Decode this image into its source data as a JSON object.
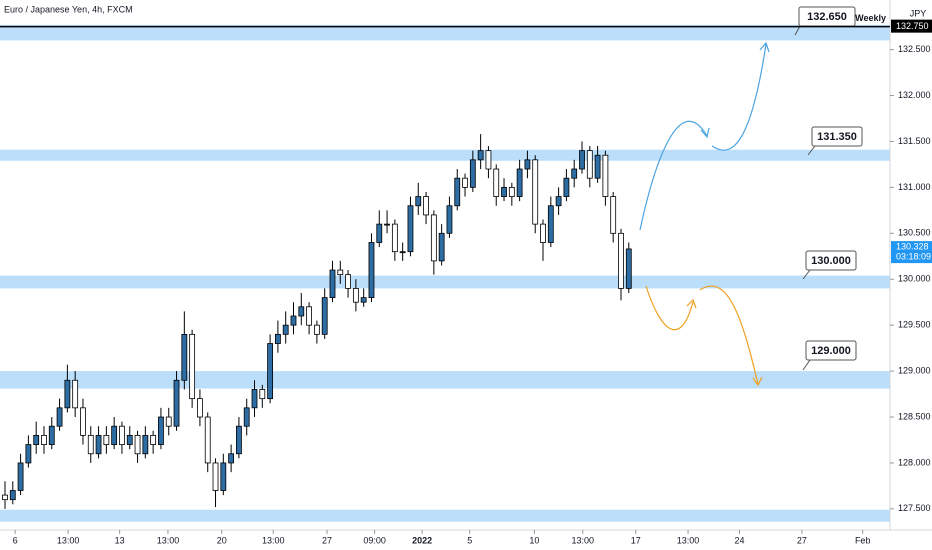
{
  "chart_data": {
    "type": "candlestick",
    "title": "Euro / Japanese Yen, 4h, FXCM",
    "currency": "JPY",
    "up_color": "#2e6da4",
    "down_color": "#ffffff",
    "wick_color": "#000000",
    "zone_color": "#bbdefb",
    "open": [
      127.65,
      127.6,
      127.7,
      128.0,
      128.2,
      128.3,
      128.2,
      128.4,
      128.6,
      128.9,
      128.6,
      128.3,
      128.1,
      128.3,
      128.2,
      128.4,
      128.2,
      128.3,
      128.1,
      128.3,
      128.2,
      128.5,
      128.4,
      128.9,
      129.4,
      128.7,
      128.5,
      128.0,
      127.7,
      128.0,
      128.1,
      128.4,
      128.6,
      128.8,
      128.7,
      129.3,
      129.4,
      129.5,
      129.6,
      129.7,
      129.5,
      129.4,
      129.8,
      130.1,
      130.05,
      129.9,
      129.75,
      129.8,
      130.4,
      130.6,
      130.6,
      130.3,
      130.3,
      130.8,
      130.9,
      130.7,
      130.2,
      130.5,
      130.8,
      131.1,
      131.0,
      131.3,
      131.4,
      131.2,
      130.9,
      131.0,
      130.9,
      131.2,
      131.3,
      130.6,
      130.4,
      130.8,
      130.9,
      131.1,
      131.2,
      131.4,
      131.1,
      131.35,
      130.9,
      130.5,
      129.9
    ],
    "high": [
      127.8,
      127.8,
      128.1,
      128.3,
      128.45,
      128.4,
      128.5,
      128.7,
      129.07,
      129.0,
      128.7,
      128.4,
      128.4,
      128.4,
      128.5,
      128.45,
      128.4,
      128.35,
      128.4,
      128.35,
      128.6,
      128.6,
      129.0,
      129.65,
      129.45,
      128.8,
      128.55,
      128.05,
      128.1,
      128.2,
      128.5,
      128.7,
      128.9,
      128.85,
      129.4,
      129.55,
      129.65,
      129.75,
      129.85,
      129.75,
      129.55,
      129.9,
      130.2,
      130.2,
      130.1,
      130.0,
      129.9,
      130.5,
      130.75,
      130.75,
      130.65,
      130.4,
      130.9,
      131.05,
      130.95,
      130.75,
      130.6,
      130.9,
      131.2,
      131.15,
      131.4,
      131.58,
      131.45,
      131.25,
      131.1,
      131.05,
      131.3,
      131.4,
      131.35,
      130.65,
      130.9,
      131.0,
      131.2,
      131.3,
      131.5,
      131.45,
      131.45,
      131.4,
      130.95,
      130.55,
      130.4
    ],
    "low": [
      127.5,
      127.55,
      127.65,
      127.95,
      128.1,
      128.1,
      128.15,
      128.35,
      128.55,
      128.5,
      128.2,
      128.0,
      128.05,
      128.1,
      128.15,
      128.1,
      128.15,
      128.0,
      128.05,
      128.1,
      128.15,
      128.3,
      128.35,
      128.8,
      128.6,
      128.4,
      127.9,
      127.52,
      127.65,
      127.9,
      128.05,
      128.3,
      128.5,
      128.6,
      128.65,
      129.2,
      129.3,
      129.4,
      129.5,
      129.4,
      129.3,
      129.35,
      129.75,
      129.95,
      129.8,
      129.65,
      129.7,
      129.75,
      130.35,
      130.5,
      130.2,
      130.2,
      130.25,
      130.7,
      130.6,
      130.05,
      130.15,
      130.45,
      130.75,
      130.9,
      130.95,
      131.2,
      131.1,
      130.8,
      130.85,
      130.8,
      130.85,
      131.1,
      130.5,
      130.2,
      130.35,
      130.7,
      130.85,
      131.0,
      131.15,
      131.0,
      131.05,
      130.8,
      130.4,
      129.77,
      129.85
    ],
    "close": [
      127.6,
      127.7,
      128.0,
      128.2,
      128.3,
      128.2,
      128.4,
      128.6,
      128.9,
      128.6,
      128.3,
      128.1,
      128.3,
      128.2,
      128.4,
      128.2,
      128.3,
      128.1,
      128.3,
      128.2,
      128.5,
      128.4,
      128.9,
      129.4,
      128.7,
      128.5,
      128.0,
      127.7,
      128.0,
      128.1,
      128.4,
      128.6,
      128.8,
      128.7,
      129.3,
      129.4,
      129.5,
      129.6,
      129.7,
      129.5,
      129.4,
      129.8,
      130.1,
      130.05,
      129.9,
      129.75,
      129.8,
      130.4,
      130.6,
      130.6,
      130.3,
      130.3,
      130.8,
      130.9,
      130.7,
      130.2,
      130.5,
      130.8,
      131.1,
      131.0,
      131.3,
      131.4,
      131.2,
      130.9,
      131.0,
      130.9,
      131.2,
      131.3,
      130.6,
      130.4,
      130.8,
      130.9,
      131.1,
      131.2,
      131.4,
      131.1,
      131.35,
      130.9,
      130.5,
      129.9,
      130.33
    ],
    "xlim": [
      -0.64,
      113.5
    ],
    "xticks": [
      {
        "value": 1.3,
        "label": "6"
      },
      {
        "value": 8.1,
        "label": "13:00"
      },
      {
        "value": 14.7,
        "label": "13"
      },
      {
        "value": 20.9,
        "label": "13:00"
      },
      {
        "value": 27.8,
        "label": "20"
      },
      {
        "value": 34.4,
        "label": "13:00"
      },
      {
        "value": 41.3,
        "label": "27"
      },
      {
        "value": 47.4,
        "label": "09:00"
      },
      {
        "value": 53.5,
        "label": "2022"
      },
      {
        "value": 59.6,
        "label": "5"
      },
      {
        "value": 67.9,
        "label": "10"
      },
      {
        "value": 74.1,
        "label": "13:00"
      },
      {
        "value": 80.9,
        "label": "17"
      },
      {
        "value": 87.6,
        "label": "13:00"
      },
      {
        "value": 94.2,
        "label": "24"
      },
      {
        "value": 102.2,
        "label": "27"
      },
      {
        "value": 110,
        "label": "Feb"
      }
    ],
    "ylim": [
      127.27,
      133.04
    ],
    "yticks": [
      {
        "value": 127.5,
        "label": "127.500"
      },
      {
        "value": 128,
        "label": "128.000"
      },
      {
        "value": 128.5,
        "label": "128.500"
      },
      {
        "value": 129,
        "label": "129.000"
      },
      {
        "value": 129.5,
        "label": "129.500"
      },
      {
        "value": 130,
        "label": "130.000"
      },
      {
        "value": 130.5,
        "label": "130.500"
      },
      {
        "value": 131,
        "label": "131.000"
      },
      {
        "value": 131.5,
        "label": "131.500"
      },
      {
        "value": 132,
        "label": "132.000"
      },
      {
        "value": 132.5,
        "label": "132.500"
      }
    ],
    "zones": [
      {
        "low": 132.6,
        "high": 132.77
      },
      {
        "low": 131.29,
        "high": 131.41
      },
      {
        "low": 129.9,
        "high": 130.04
      },
      {
        "low": 128.81,
        "high": 129.0
      },
      {
        "low": 127.36,
        "high": 127.49
      }
    ],
    "weekly_level": {
      "name": "Weekly",
      "value": 132.75,
      "label": "132.750"
    },
    "current_price": 130.328,
    "countdown": "03:18:09",
    "annotations": [
      "132.650",
      "131.350",
      "130.000",
      "129.000"
    ]
  }
}
